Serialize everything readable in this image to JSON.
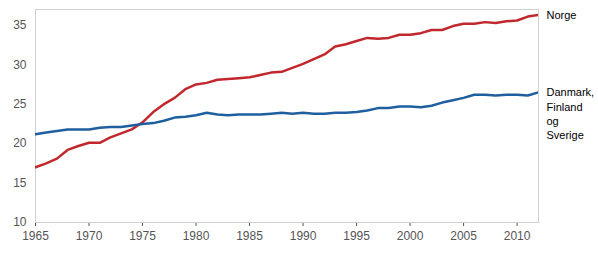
{
  "chart_data": {
    "type": "line",
    "x": [
      1965,
      1966,
      1967,
      1968,
      1969,
      1970,
      1971,
      1972,
      1973,
      1974,
      1975,
      1976,
      1977,
      1978,
      1979,
      1980,
      1981,
      1982,
      1983,
      1984,
      1985,
      1986,
      1987,
      1988,
      1989,
      1990,
      1991,
      1992,
      1993,
      1994,
      1995,
      1996,
      1997,
      1998,
      1999,
      2000,
      2001,
      2002,
      2003,
      2004,
      2005,
      2006,
      2007,
      2008,
      2009,
      2010,
      2011,
      2012
    ],
    "series": [
      {
        "name": "Norge",
        "color": "#c0282d",
        "values": [
          17.0,
          17.5,
          18.1,
          19.2,
          19.7,
          20.1,
          20.1,
          20.8,
          21.3,
          21.8,
          22.7,
          24.0,
          25.0,
          25.8,
          26.9,
          27.5,
          27.7,
          28.1,
          28.2,
          28.3,
          28.4,
          28.7,
          29.0,
          29.1,
          29.6,
          30.1,
          30.7,
          31.3,
          32.3,
          32.6,
          33.0,
          33.4,
          33.3,
          33.4,
          33.8,
          33.8,
          34.0,
          34.4,
          34.4,
          34.9,
          35.2,
          35.2,
          35.4,
          35.3,
          35.5,
          35.6,
          36.1,
          36.3
        ]
      },
      {
        "name": "Danmark,\nFinland\nog\nSverige",
        "color": "#1f5f9f",
        "values": [
          21.2,
          21.4,
          21.6,
          21.8,
          21.8,
          21.8,
          22.0,
          22.1,
          22.1,
          22.3,
          22.5,
          22.6,
          22.9,
          23.3,
          23.4,
          23.6,
          23.9,
          23.7,
          23.6,
          23.7,
          23.7,
          23.7,
          23.8,
          23.9,
          23.8,
          23.9,
          23.8,
          23.8,
          23.9,
          23.9,
          24.0,
          24.2,
          24.5,
          24.5,
          24.7,
          24.7,
          24.6,
          24.8,
          25.2,
          25.5,
          25.8,
          26.2,
          26.2,
          26.1,
          26.2,
          26.2,
          26.1,
          26.5
        ]
      }
    ],
    "xlim": [
      1965,
      2012
    ],
    "xticks": [
      1965,
      1970,
      1975,
      1980,
      1985,
      1990,
      1995,
      2000,
      2005,
      2010
    ],
    "ylim": [
      10,
      37
    ],
    "yticks": [
      10,
      15,
      20,
      25,
      30,
      35
    ],
    "grid": false
  }
}
